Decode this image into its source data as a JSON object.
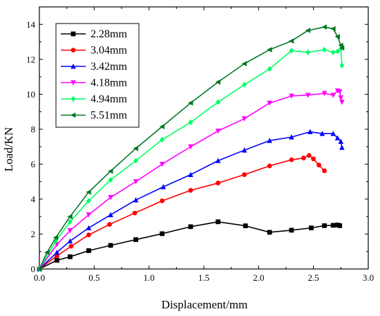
{
  "chart_data": {
    "type": "line",
    "title": "",
    "xlabel": "Displacement/mm",
    "ylabel": "Load/KN",
    "xlim": [
      0,
      3.0
    ],
    "ylim": [
      0,
      15
    ],
    "xticks": [
      "0.0",
      "0.5",
      "1.0",
      "1.5",
      "2.0",
      "2.5",
      "3.0"
    ],
    "yticks": [
      "0",
      "2",
      "4",
      "6",
      "8",
      "10",
      "12",
      "14"
    ],
    "grid": false,
    "legend_position": "top-left",
    "series": [
      {
        "name": "2.28mm",
        "color": "#000000",
        "marker": "square",
        "x": [
          0.0,
          0.16,
          0.28,
          0.45,
          0.65,
          0.88,
          1.12,
          1.38,
          1.63,
          1.88,
          2.1,
          2.3,
          2.48,
          2.6,
          2.68,
          2.72,
          2.74
        ],
        "y": [
          0.0,
          0.5,
          0.7,
          1.05,
          1.35,
          1.68,
          2.02,
          2.42,
          2.7,
          2.47,
          2.1,
          2.22,
          2.35,
          2.48,
          2.5,
          2.52,
          2.48
        ]
      },
      {
        "name": "3.04mm",
        "color": "#ff0000",
        "marker": "circle",
        "x": [
          0.0,
          0.16,
          0.29,
          0.45,
          0.64,
          0.87,
          1.12,
          1.38,
          1.63,
          1.87,
          2.1,
          2.3,
          2.41,
          2.46,
          2.5,
          2.55,
          2.6
        ],
        "y": [
          0.0,
          0.75,
          1.3,
          1.95,
          2.55,
          3.2,
          3.9,
          4.5,
          4.92,
          5.4,
          5.9,
          6.25,
          6.35,
          6.5,
          6.3,
          5.95,
          5.62
        ]
      },
      {
        "name": "3.42mm",
        "color": "#0000ff",
        "marker": "triangle-up",
        "x": [
          0.0,
          0.16,
          0.28,
          0.45,
          0.65,
          0.88,
          1.13,
          1.38,
          1.63,
          1.87,
          2.1,
          2.3,
          2.47,
          2.58,
          2.68,
          2.72,
          2.75,
          2.76
        ],
        "y": [
          0.0,
          0.95,
          1.6,
          2.35,
          3.1,
          3.95,
          4.7,
          5.4,
          6.2,
          6.8,
          7.35,
          7.55,
          7.85,
          7.75,
          7.75,
          7.5,
          7.3,
          6.95
        ]
      },
      {
        "name": "4.18mm",
        "color": "#ff00ff",
        "marker": "triangle-down",
        "x": [
          0.0,
          0.16,
          0.28,
          0.45,
          0.65,
          0.88,
          1.12,
          1.38,
          1.63,
          1.87,
          2.1,
          2.3,
          2.45,
          2.6,
          2.68,
          2.72,
          2.74,
          2.75,
          2.76
        ],
        "y": [
          0.0,
          1.4,
          2.2,
          3.1,
          4.1,
          5.0,
          6.0,
          7.0,
          7.9,
          8.6,
          9.5,
          9.9,
          9.95,
          10.05,
          9.95,
          10.2,
          10.15,
          9.8,
          9.55
        ]
      },
      {
        "name": "4.94mm",
        "color": "#00ff66",
        "marker": "diamond",
        "x": [
          0.0,
          0.15,
          0.28,
          0.45,
          0.65,
          0.88,
          1.12,
          1.38,
          1.63,
          1.87,
          2.1,
          2.3,
          2.45,
          2.6,
          2.68,
          2.72,
          2.75,
          2.76
        ],
        "y": [
          0.0,
          1.6,
          2.7,
          3.9,
          5.1,
          6.2,
          7.4,
          8.4,
          9.55,
          10.55,
          11.45,
          12.5,
          12.4,
          12.55,
          12.4,
          12.45,
          12.6,
          11.65
        ]
      },
      {
        "name": "5.51mm",
        "color": "#007722",
        "marker": "triangle-left",
        "x": [
          0.0,
          0.07,
          0.15,
          0.28,
          0.45,
          0.65,
          0.88,
          1.12,
          1.38,
          1.63,
          1.87,
          2.1,
          2.3,
          2.45,
          2.6,
          2.68,
          2.72,
          2.75,
          2.76
        ],
        "y": [
          0.0,
          0.95,
          1.8,
          3.0,
          4.4,
          5.6,
          6.9,
          8.15,
          9.5,
          10.7,
          11.75,
          12.55,
          13.05,
          13.65,
          13.85,
          13.75,
          13.3,
          12.8,
          12.65
        ]
      }
    ]
  }
}
